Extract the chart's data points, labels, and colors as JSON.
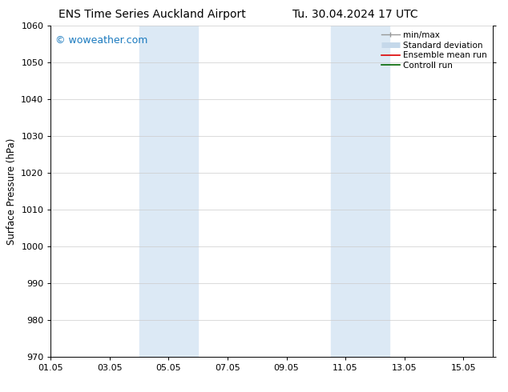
{
  "title_left": "ENS Time Series Auckland Airport",
  "title_right": "Tu. 30.04.2024 17 UTC",
  "ylabel": "Surface Pressure (hPa)",
  "ylim": [
    970,
    1060
  ],
  "yticks": [
    970,
    980,
    990,
    1000,
    1010,
    1020,
    1030,
    1040,
    1050,
    1060
  ],
  "xtick_labels": [
    "01.05",
    "03.05",
    "05.05",
    "07.05",
    "09.05",
    "11.05",
    "13.05",
    "15.05"
  ],
  "xtick_positions": [
    0,
    2,
    4,
    6,
    8,
    10,
    12,
    14
  ],
  "xlim": [
    0,
    15
  ],
  "shaded_bands": [
    {
      "x_start": 3.0,
      "x_end": 5.0,
      "color": "#dce9f5"
    },
    {
      "x_start": 9.5,
      "x_end": 11.5,
      "color": "#dce9f5"
    }
  ],
  "background_color": "#ffffff",
  "grid_color": "#cccccc",
  "watermark_text": "© woweather.com",
  "watermark_color": "#1a7abf",
  "legend_entries": [
    {
      "label": "min/max",
      "color": "#999999",
      "lw": 1.0
    },
    {
      "label": "Standard deviation",
      "color": "#c5d8ea",
      "lw": 5
    },
    {
      "label": "Ensemble mean run",
      "color": "#dd0000",
      "lw": 1.2
    },
    {
      "label": "Controll run",
      "color": "#006600",
      "lw": 1.2
    }
  ],
  "title_fontsize": 10,
  "tick_fontsize": 8,
  "legend_fontsize": 7.5,
  "ylabel_fontsize": 8.5,
  "watermark_fontsize": 9
}
